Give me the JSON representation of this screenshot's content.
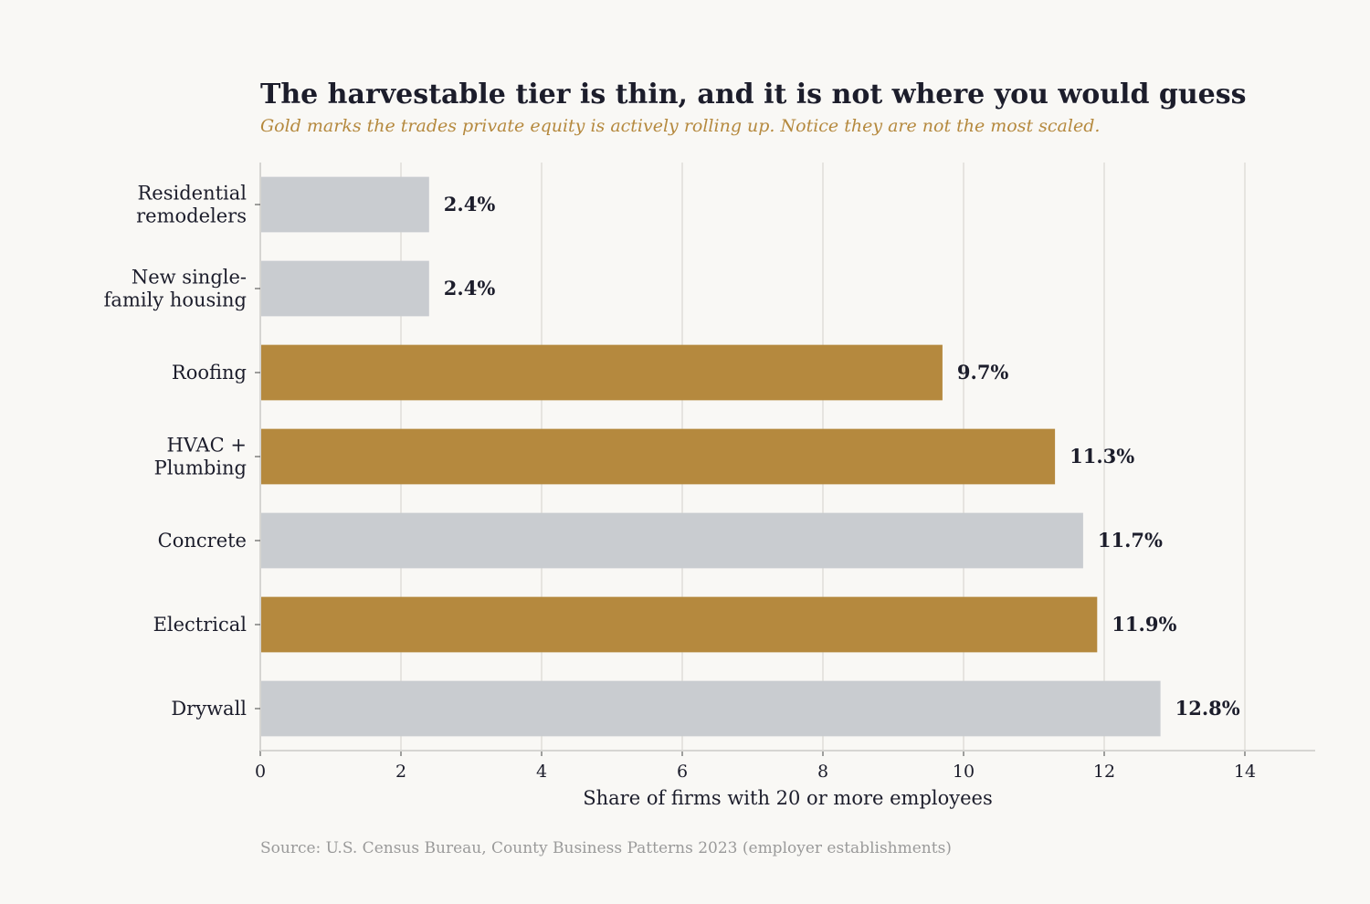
{
  "colors": {
    "background": "#f9f8f5",
    "highlight": "#b5893e",
    "default": "#c9ccd0",
    "text": "#1c1d2b",
    "grid": "#e6e4e0"
  },
  "chart_data": {
    "type": "bar",
    "orientation": "horizontal",
    "title": "The harvestable tier is thin, and it is not where you would guess",
    "subtitle": "Gold marks the trades private equity is actively rolling up. Notice they are not the most scaled.",
    "xlabel": "Share of firms with 20 or more employees",
    "ylabel": "",
    "xlim": [
      0,
      15
    ],
    "xticks": [
      0,
      2,
      4,
      6,
      8,
      10,
      12,
      14
    ],
    "grid": "vertical",
    "categories": [
      [
        "Residential",
        "remodelers"
      ],
      [
        "New single-",
        "family housing"
      ],
      [
        "Roofing"
      ],
      [
        "HVAC +",
        "Plumbing"
      ],
      [
        "Concrete"
      ],
      [
        "Electrical"
      ],
      [
        "Drywall"
      ]
    ],
    "values": [
      2.4,
      2.4,
      9.7,
      11.3,
      11.7,
      11.9,
      12.8
    ],
    "value_labels": [
      "2.4%",
      "2.4%",
      "9.7%",
      "11.3%",
      "11.7%",
      "11.9%",
      "12.8%"
    ],
    "highlighted": [
      false,
      false,
      true,
      true,
      false,
      true,
      false
    ],
    "source": "Source: U.S. Census Bureau, County Business Patterns 2023 (employer establishments)"
  }
}
